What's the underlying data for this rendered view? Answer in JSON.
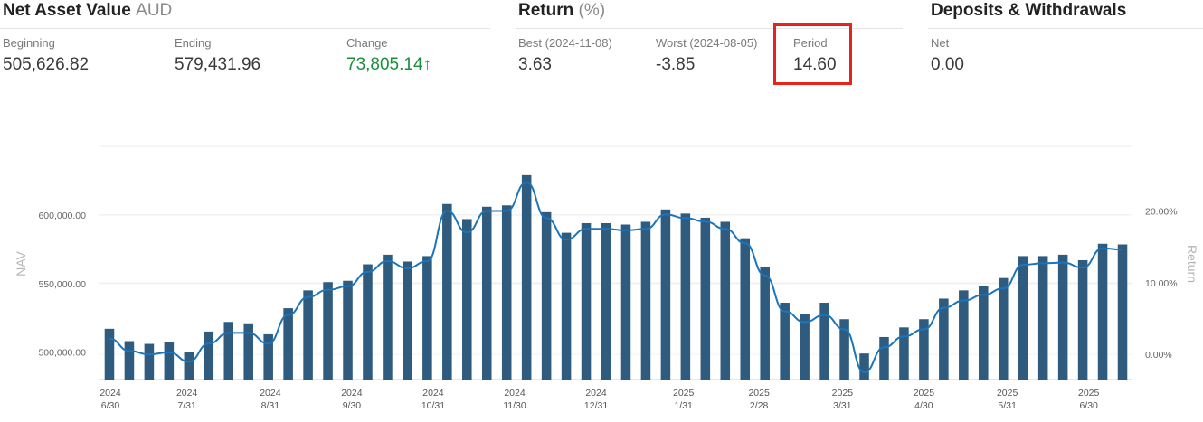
{
  "nav": {
    "title": "Net Asset Value",
    "currency": "AUD",
    "beginning_label": "Beginning",
    "beginning_value": "505,626.82",
    "ending_label": "Ending",
    "ending_value": "579,431.96",
    "change_label": "Change",
    "change_value": "73,805.14",
    "change_arrow": "↑"
  },
  "return": {
    "title": "Return",
    "unit": "(%)",
    "best_label": "Best (2024-11-08)",
    "best_value": "3.63",
    "worst_label": "Worst (2024-08-05)",
    "worst_value": "-3.85",
    "period_label": "Period",
    "period_value": "14.60"
  },
  "deposits": {
    "title": "Deposits & Withdrawals",
    "net_label": "Net",
    "net_value": "0.00"
  },
  "colors": {
    "bar": "#2e5b7e",
    "line": "#1b75bb",
    "positive": "#1a8f3c",
    "highlight": "#e8231a"
  },
  "chart_data": {
    "type": "bar",
    "ylabel": "NAV",
    "y2label": "Return",
    "ylim": [
      480000,
      650000
    ],
    "y2lim": [
      -3.5,
      29
    ],
    "yticks": [
      {
        "value": 500000,
        "label": "500,000.00"
      },
      {
        "value": 550000,
        "label": "550,000.00"
      },
      {
        "value": 600000,
        "label": "600,000.00"
      }
    ],
    "y2ticks": [
      {
        "value": 0,
        "label": "0.00%"
      },
      {
        "value": 10,
        "label": "10.00%"
      },
      {
        "value": 20,
        "label": "20.00%"
      }
    ],
    "xticks": [
      {
        "year": "2024",
        "date": "6/30",
        "index": 0
      },
      {
        "year": "2024",
        "date": "7/31",
        "index": 4.4
      },
      {
        "year": "2024",
        "date": "8/31",
        "index": 8.6
      },
      {
        "year": "2024",
        "date": "9/30",
        "index": 12.7
      },
      {
        "year": "2024",
        "date": "10/31",
        "index": 16.8
      },
      {
        "year": "2024",
        "date": "11/30",
        "index": 20.9
      },
      {
        "year": "2024",
        "date": "12/31",
        "index": 25.0
      },
      {
        "year": "2025",
        "date": "1/31",
        "index": 29.4
      },
      {
        "year": "2025",
        "date": "2/28",
        "index": 33.2
      },
      {
        "year": "2025",
        "date": "3/31",
        "index": 37.4
      },
      {
        "year": "2025",
        "date": "4/30",
        "index": 41.5
      },
      {
        "year": "2025",
        "date": "5/31",
        "index": 45.7
      },
      {
        "year": "2025",
        "date": "6/30",
        "index": 49.8
      }
    ],
    "nav_values": [
      517000,
      508000,
      506000,
      507000,
      500000,
      515000,
      522000,
      521000,
      513000,
      532000,
      545000,
      551000,
      552000,
      564000,
      571000,
      566000,
      570000,
      608000,
      597000,
      606000,
      607000,
      629000,
      602000,
      587000,
      594000,
      594000,
      593000,
      595000,
      604000,
      601000,
      598000,
      595000,
      583000,
      562000,
      536000,
      528000,
      536000,
      524000,
      499000,
      511000,
      518000,
      524000,
      539000,
      545000,
      548000,
      554000,
      570000,
      570000,
      571000,
      567000,
      579000,
      578500
    ],
    "return_values": [
      2.2,
      0.5,
      0.0,
      0.3,
      -1.0,
      1.5,
      3.0,
      3.0,
      1.5,
      5.5,
      8.0,
      9.0,
      9.5,
      11.5,
      13.0,
      12.0,
      13.0,
      20.0,
      17.0,
      20.0,
      20.0,
      24.0,
      19.0,
      16.0,
      17.5,
      17.5,
      17.3,
      17.5,
      19.5,
      19.0,
      18.5,
      17.5,
      15.5,
      11.0,
      6.0,
      4.5,
      5.5,
      3.5,
      -2.5,
      1.0,
      2.5,
      3.5,
      6.5,
      7.5,
      8.3,
      9.2,
      12.5,
      12.7,
      12.8,
      12.1,
      14.8,
      14.6
    ]
  }
}
